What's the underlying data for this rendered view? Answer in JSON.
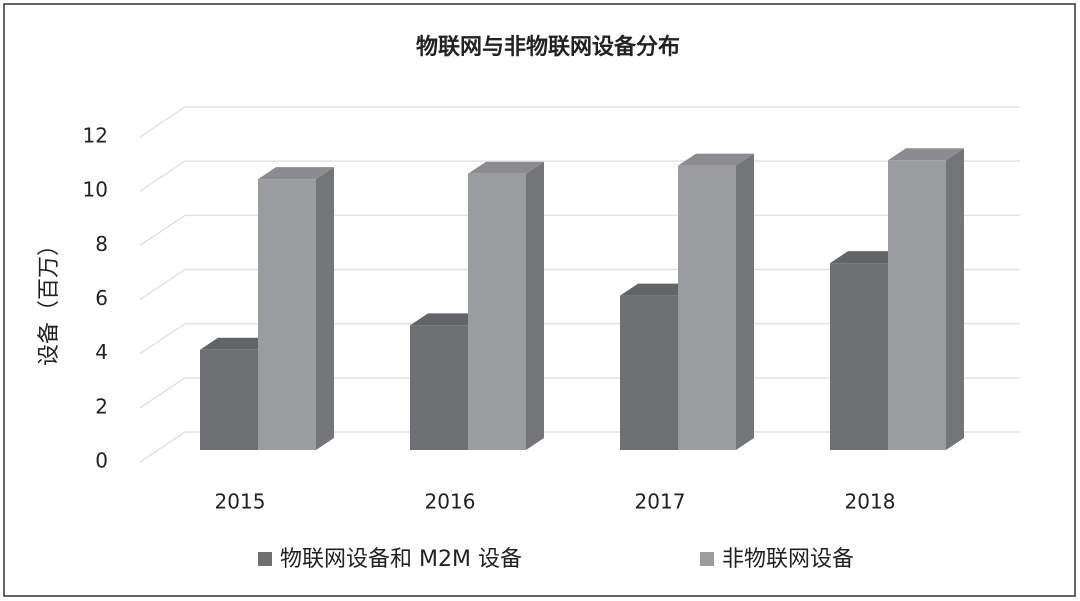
{
  "chart_data": {
    "type": "bar3d",
    "title": "物联网与非物联网设备分布",
    "y_label": "设备（百万）",
    "categories": [
      "2015",
      "2016",
      "2017",
      "2018"
    ],
    "series": [
      {
        "name": "物联网设备和 M2M 设备",
        "color": "#6e6f73",
        "values": [
          3.7,
          4.6,
          5.7,
          6.9
        ]
      },
      {
        "name": "非物联网设备",
        "color": "#9b9ca0",
        "values": [
          10.0,
          10.2,
          10.5,
          10.7
        ]
      }
    ],
    "ylim": [
      0,
      12
    ],
    "yticks": [
      0,
      2,
      4,
      6,
      8,
      10,
      12
    ],
    "grid": true,
    "legend": "bottom"
  }
}
